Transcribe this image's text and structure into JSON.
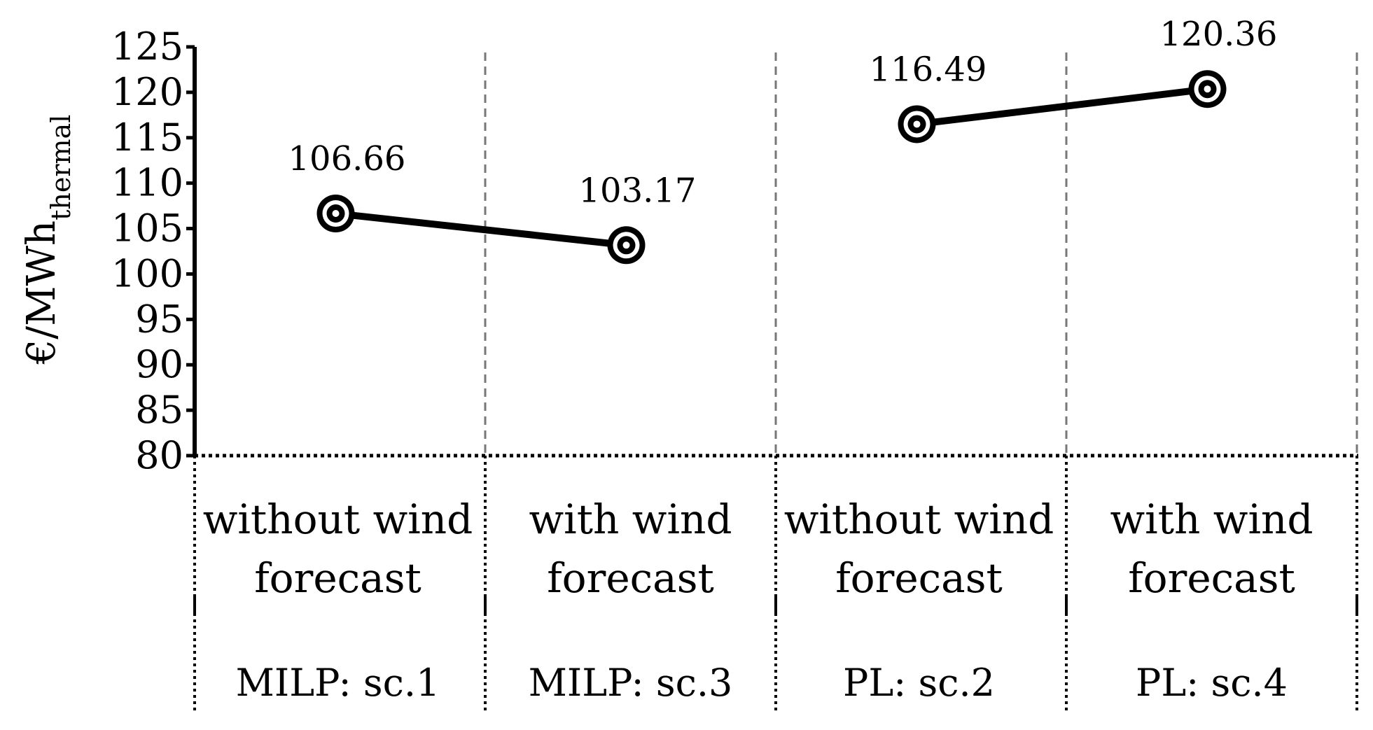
{
  "chart_data": {
    "type": "line",
    "ylabel": {
      "main": "€/MWh",
      "subscript": "thermal"
    },
    "ylim": [
      80,
      125
    ],
    "yticks": [
      80,
      85,
      90,
      95,
      100,
      105,
      110,
      115,
      120,
      125
    ],
    "groups": [
      {
        "name": "MILP: sc.1 / MILP: sc.3",
        "points": [
          {
            "category_lines": [
              "without wind",
              "forecast"
            ],
            "scenario": "MILP: sc.1",
            "value": 106.66,
            "label": "106.66"
          },
          {
            "category_lines": [
              "with wind",
              "forecast"
            ],
            "scenario": "MILP: sc.3",
            "value": 103.17,
            "label": "103.17"
          }
        ]
      },
      {
        "name": "PL: sc.2 / PL: sc.4",
        "points": [
          {
            "category_lines": [
              "without wind",
              "forecast"
            ],
            "scenario": "PL: sc.2",
            "value": 116.49,
            "label": "116.49"
          },
          {
            "category_lines": [
              "with wind",
              "forecast"
            ],
            "scenario": "PL: sc.4",
            "value": 120.36,
            "label": "120.36"
          }
        ]
      }
    ],
    "grid": "vertical dashed separators",
    "legend": "none"
  }
}
